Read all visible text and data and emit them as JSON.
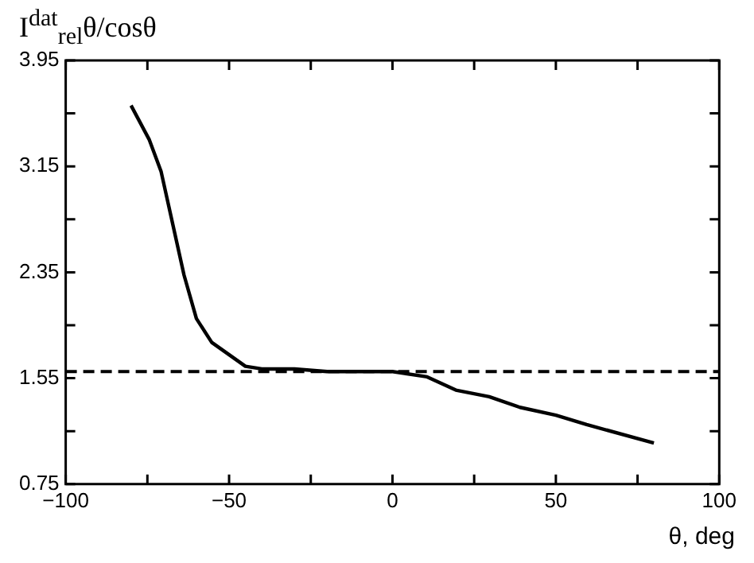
{
  "chart_data": {
    "type": "line",
    "xlabel": "θ, deg",
    "ylabel": "I$^{dat}$$_{rel}$θ/cosθ",
    "x": [
      -80,
      -74.4,
      -70.8,
      -63.8,
      -60,
      -55.3,
      -45,
      -40,
      -30,
      -20,
      0,
      10.6,
      19.4,
      29.6,
      39,
      50,
      59.4,
      80
    ],
    "series": [
      {
        "color": "#000000",
        "values": [
          3.61,
          3.35,
          3.11,
          2.33,
          2.0,
          1.82,
          1.64,
          1.62,
          1.62,
          1.6,
          1.6,
          1.56,
          1.46,
          1.41,
          1.33,
          1.27,
          1.2,
          1.06
        ]
      }
    ],
    "xlim": [
      -100,
      100
    ],
    "xticks": [
      {
        "value": -100,
        "label": "−100"
      },
      {
        "value": -75,
        "label": null
      },
      {
        "value": -50,
        "label": "−50"
      },
      {
        "value": -25,
        "label": null
      },
      0,
      {
        "value": 25,
        "label": null
      },
      50,
      {
        "value": 75,
        "label": null
      },
      100
    ],
    "ylim": [
      0.75,
      3.95
    ],
    "yticks": [
      0.75,
      {
        "value": 1.15,
        "label": null
      },
      1.55,
      {
        "value": 1.95,
        "label": null
      },
      2.35,
      {
        "value": 2.75,
        "label": null
      },
      3.15,
      {
        "value": 3.55,
        "label": null
      },
      3.95
    ],
    "ref_lines": [
      {
        "axis": "y",
        "value": 1.6,
        "color": "#000000",
        "line_style": "dashed"
      }
    ],
    "marker": "none",
    "line_style": "solid",
    "grid": false,
    "legend": false
  }
}
